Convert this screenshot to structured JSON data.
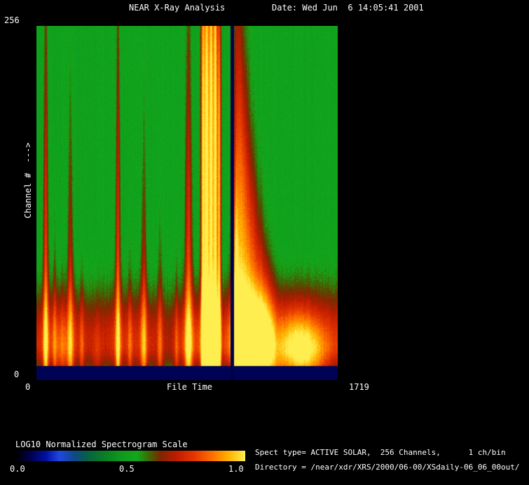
{
  "window": {
    "bg": "#000000",
    "fg": "#ffffff"
  },
  "header": {
    "title": "NEAR X-Ray Analysis",
    "date": "Date: Wed Jun  6 14:05:41 2001"
  },
  "axes": {
    "y_max": "256",
    "y_min": "0",
    "y_label": "Channel #  --->",
    "x_min": "0",
    "x_max": "1719",
    "x_label": "File Time"
  },
  "colorbar": {
    "title": "LOG10 Normalized Spectrogram Scale",
    "tick_left": "0.0",
    "tick_mid": "0.5",
    "tick_right": "1.0"
  },
  "info": {
    "line1": "Spect type= ACTIVE SOLAR,  256 Channels,      1 ch/bin",
    "line2": "Directory = /near/xdr/XRS/2000/06-00/XSdaily-06_06_00out/"
  },
  "chart_data": {
    "type": "heatmap",
    "title": "NEAR X-Ray Analysis",
    "xlabel": "File Time",
    "ylabel": "Channel #  --->",
    "x_range": [
      0,
      1719
    ],
    "y_range": [
      0,
      256
    ],
    "value_range": [
      0.0,
      1.0
    ],
    "scale_label": "LOG10 Normalized Spectrogram Scale",
    "colorbar_ticks": [
      0.0,
      0.5,
      1.0
    ],
    "colormap": [
      {
        "at": 0.0,
        "color": "#000000"
      },
      {
        "at": 0.06,
        "color": "#000048"
      },
      {
        "at": 0.13,
        "color": "#0010a0"
      },
      {
        "at": 0.19,
        "color": "#2048e0"
      },
      {
        "at": 0.25,
        "color": "#104890"
      },
      {
        "at": 0.31,
        "color": "#086048"
      },
      {
        "at": 0.38,
        "color": "#0a7c28"
      },
      {
        "at": 0.46,
        "color": "#0f9a1e"
      },
      {
        "at": 0.53,
        "color": "#12a81c"
      },
      {
        "at": 0.58,
        "color": "#3c6a04"
      },
      {
        "at": 0.63,
        "color": "#7c2800"
      },
      {
        "at": 0.7,
        "color": "#c01c00"
      },
      {
        "at": 0.78,
        "color": "#e63800"
      },
      {
        "at": 0.86,
        "color": "#ff7200"
      },
      {
        "at": 0.93,
        "color": "#ffb400"
      },
      {
        "at": 1.0,
        "color": "#ffee50"
      }
    ],
    "field": {
      "channels": 256,
      "background": 0.5,
      "noise": 0.05,
      "col_noise": 0.03,
      "bottom_gap_channels": 10,
      "bottom_gap_value": 0.07,
      "band_center": 26,
      "band_sigma_up": 26,
      "band_sigma_down": 14,
      "band_profile": [
        [
          0.0,
          0.24
        ],
        [
          0.05,
          0.28
        ],
        [
          0.12,
          0.26
        ],
        [
          0.2,
          0.2
        ],
        [
          0.27,
          0.26
        ],
        [
          0.36,
          0.24
        ],
        [
          0.44,
          0.18
        ],
        [
          0.5,
          0.28
        ],
        [
          0.56,
          0.3
        ],
        [
          0.62,
          0.28
        ],
        [
          0.655,
          0.38
        ],
        [
          0.7,
          0.4
        ],
        [
          0.76,
          0.36
        ],
        [
          0.8,
          0.18
        ],
        [
          0.84,
          0.34
        ],
        [
          0.9,
          0.36
        ],
        [
          0.95,
          0.3
        ],
        [
          1.0,
          0.26
        ]
      ],
      "events": [
        {
          "x": 0.03,
          "w": 0.006,
          "amp": 0.32,
          "h": 0.98
        },
        {
          "x": 0.06,
          "w": 0.005,
          "amp": 0.16,
          "h": 0.4
        },
        {
          "x": 0.085,
          "w": 0.012,
          "amp": 0.12,
          "h": 0.22
        },
        {
          "x": 0.112,
          "w": 0.007,
          "amp": 0.26,
          "h": 0.7
        },
        {
          "x": 0.15,
          "w": 0.005,
          "amp": 0.14,
          "h": 0.3
        },
        {
          "x": 0.2,
          "w": 0.01,
          "amp": 0.1,
          "h": 0.2
        },
        {
          "x": 0.27,
          "w": 0.006,
          "amp": 0.32,
          "h": 0.95
        },
        {
          "x": 0.31,
          "w": 0.005,
          "amp": 0.14,
          "h": 0.33
        },
        {
          "x": 0.356,
          "w": 0.007,
          "amp": 0.25,
          "h": 0.6
        },
        {
          "x": 0.41,
          "w": 0.006,
          "amp": 0.18,
          "h": 0.4
        },
        {
          "x": 0.465,
          "w": 0.005,
          "amp": 0.14,
          "h": 0.3
        },
        {
          "x": 0.505,
          "w": 0.009,
          "amp": 0.32,
          "h": 0.96
        },
        {
          "x": 0.553,
          "w": 0.005,
          "amp": 0.5,
          "h": 1.3,
          "p": 6,
          "taper": 0.05
        },
        {
          "x": 0.566,
          "w": 0.005,
          "amp": 0.55,
          "h": 1.3,
          "p": 6,
          "taper": 0.05
        },
        {
          "x": 0.58,
          "w": 0.005,
          "amp": 0.55,
          "h": 1.3,
          "p": 6,
          "taper": 0.05
        },
        {
          "x": 0.594,
          "w": 0.005,
          "amp": 0.55,
          "h": 1.3,
          "p": 6,
          "taper": 0.05
        },
        {
          "x": 0.607,
          "w": 0.004,
          "amp": 0.45,
          "h": 1.15,
          "p": 6,
          "taper": 0.05
        },
        {
          "x": 0.662,
          "w": 0.006,
          "amp": 0.3,
          "h": 0.5,
          "p": 3,
          "taper": 0.2
        },
        {
          "x": 0.67,
          "w": 0.014,
          "amp": 0.36,
          "h": 1.1,
          "p": 3,
          "taper": 0.3
        },
        {
          "x": 0.695,
          "w": 0.014,
          "amp": 0.32,
          "h": 0.8,
          "p": 3,
          "taper": 0.3
        },
        {
          "x": 0.72,
          "w": 0.014,
          "amp": 0.28,
          "h": 0.6,
          "p": 3,
          "taper": 0.3
        },
        {
          "x": 0.745,
          "w": 0.014,
          "amp": 0.25,
          "h": 0.45,
          "p": 3,
          "taper": 0.3
        },
        {
          "x": 0.77,
          "w": 0.016,
          "amp": 0.22,
          "h": 0.34,
          "p": 3,
          "taper": 0.3
        },
        {
          "x": 0.8,
          "w": 0.02,
          "amp": 0.18,
          "h": 0.25,
          "p": 3,
          "taper": 0.3
        },
        {
          "x": 0.86,
          "w": 0.04,
          "amp": 0.2,
          "h": 0.18,
          "p": 3,
          "taper": 0.2
        },
        {
          "x": 0.92,
          "w": 0.04,
          "amp": 0.15,
          "h": 0.15,
          "p": 3,
          "taper": 0.2
        }
      ],
      "gaps": [
        {
          "x": 0.65,
          "w": 0.011,
          "value": 0.06
        }
      ]
    }
  }
}
